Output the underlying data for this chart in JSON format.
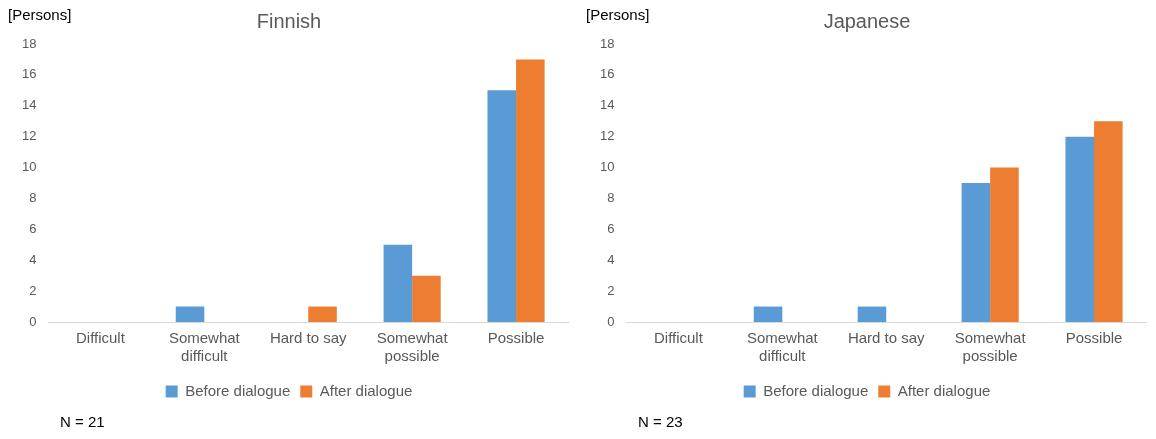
{
  "chart_data": [
    {
      "type": "bar",
      "title": "Finnish",
      "ylabel": "[Persons]",
      "categories": [
        "Difficult",
        "Somewhat difficult",
        "Hard to say",
        "Somewhat possible",
        "Possible"
      ],
      "series": [
        {
          "name": "Before dialogue",
          "color": "#5b9bd5",
          "values": [
            0,
            1,
            0,
            5,
            15
          ]
        },
        {
          "name": "After dialogue",
          "color": "#ed7d31",
          "values": [
            0,
            0,
            1,
            3,
            17
          ]
        }
      ],
      "ylim": [
        0,
        18
      ],
      "yticks": [
        0,
        2,
        4,
        6,
        8,
        10,
        12,
        14,
        16,
        18
      ],
      "grid": false,
      "legend": "bottom",
      "annotations": [
        "N = 21"
      ]
    },
    {
      "type": "bar",
      "title": "Japanese",
      "ylabel": "[Persons]",
      "categories": [
        "Difficult",
        "Somewhat difficult",
        "Hard to say",
        "Somewhat possible",
        "Possible"
      ],
      "series": [
        {
          "name": "Before dialogue",
          "color": "#5b9bd5",
          "values": [
            0,
            1,
            1,
            9,
            12
          ]
        },
        {
          "name": "After dialogue",
          "color": "#ed7d31",
          "values": [
            0,
            0,
            0,
            10,
            13
          ]
        }
      ],
      "ylim": [
        0,
        18
      ],
      "yticks": [
        0,
        2,
        4,
        6,
        8,
        10,
        12,
        14,
        16,
        18
      ],
      "grid": false,
      "legend": "bottom",
      "annotations": [
        "N = 23"
      ]
    }
  ]
}
